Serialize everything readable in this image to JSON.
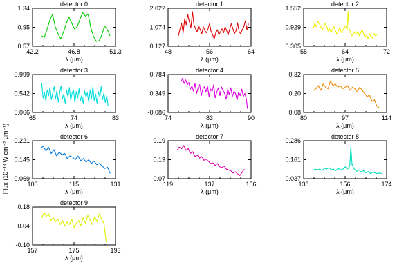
{
  "figure": {
    "ylabel": "Flux (10⁻¹³ W cm⁻² μm⁻¹)"
  },
  "chart_data": [
    {
      "type": "line",
      "title": "detector 0",
      "xlabel": "λ (μm)",
      "color": "#00cc00",
      "xlim": [
        42.2,
        51.3
      ],
      "ylim": [
        0.57,
        1.34
      ],
      "xticks": [
        "42.2",
        "46.8",
        "51.3"
      ],
      "yticks": [
        "1.34",
        "0.95",
        "0.57"
      ],
      "series": [
        {
          "x": [
            43.2,
            43.5,
            43.8,
            44.1,
            44.4,
            44.7,
            45.0,
            45.3,
            45.6,
            45.9,
            46.2,
            46.5,
            46.8,
            47.1,
            47.4,
            47.7,
            48.0,
            48.3,
            48.6,
            48.9,
            49.2,
            49.5,
            49.8,
            50.1,
            50.4,
            50.7
          ],
          "values": [
            0.78,
            0.75,
            0.92,
            1.1,
            1.22,
            0.96,
            0.82,
            0.72,
            0.86,
            1.03,
            1.16,
            1.04,
            0.92,
            0.96,
            1.12,
            1.25,
            1.18,
            1.22,
            0.94,
            0.76,
            0.67,
            0.68,
            0.8,
            0.98,
            0.91,
            0.78
          ]
        }
      ]
    },
    {
      "type": "line",
      "title": "detector 1",
      "xlabel": "λ (μm)",
      "color": "#dd0000",
      "xlim": [
        48,
        64
      ],
      "ylim": [
        0.127,
        2.022
      ],
      "xticks": [
        "48",
        "56",
        "64"
      ],
      "yticks": [
        "2.022",
        "1.074",
        "0.127"
      ],
      "series": [
        {
          "x": [
            50.0,
            50.3,
            50.6,
            50.9,
            51.2,
            51.5,
            51.8,
            52.1,
            52.4,
            52.7,
            53.0,
            53.3,
            53.6,
            53.9,
            54.2,
            54.5,
            54.8,
            55.1,
            55.4,
            55.7,
            56.0,
            56.3,
            56.6,
            56.9,
            57.2,
            57.5,
            57.8,
            58.1,
            58.4,
            58.7,
            59.0,
            59.3,
            59.6,
            59.9,
            60.2,
            60.5,
            60.8,
            61.1,
            61.4,
            61.7,
            62.0,
            62.3,
            62.6,
            62.9,
            63.2,
            63.5
          ],
          "values": [
            0.65,
            1.0,
            1.25,
            0.8,
            1.5,
            1.2,
            1.7,
            1.35,
            1.05,
            1.85,
            1.2,
            1.0,
            0.85,
            1.15,
            0.95,
            0.75,
            1.1,
            0.9,
            0.8,
            1.0,
            1.25,
            0.85,
            0.7,
            0.5,
            0.8,
            0.95,
            0.7,
            0.85,
            1.0,
            0.8,
            1.1,
            0.9,
            0.7,
            1.0,
            1.25,
            1.0,
            0.75,
            0.9,
            1.3,
            0.85,
            0.75,
            0.95,
            1.1,
            1.4,
            0.95,
            1.25
          ]
        }
      ]
    },
    {
      "type": "line",
      "title": "detector 2",
      "xlabel": "λ (μm)",
      "color": "#eeee00",
      "xlim": [
        55,
        72
      ],
      "ylim": [
        0.305,
        1.552
      ],
      "xticks": [
        "55",
        "64",
        "72"
      ],
      "yticks": [
        "1.552",
        "0.929",
        "0.305"
      ],
      "series": [
        {
          "x": [
            57.0,
            57.3,
            57.6,
            57.9,
            58.2,
            58.5,
            58.8,
            59.1,
            59.4,
            59.7,
            60.0,
            60.3,
            60.6,
            60.9,
            61.2,
            61.5,
            61.8,
            62.1,
            62.4,
            62.7,
            63.0,
            63.3,
            63.6,
            63.9,
            64.1,
            64.3,
            64.6,
            64.9,
            65.2,
            65.5,
            65.8,
            66.1,
            66.4,
            66.7,
            67.0,
            67.3,
            67.6,
            67.9,
            68.2,
            68.5,
            68.8,
            69.1,
            69.4,
            69.7,
            70.0
          ],
          "values": [
            0.9,
            1.05,
            0.95,
            1.12,
            1.05,
            0.95,
            0.85,
            0.92,
            1.05,
            0.98,
            0.8,
            0.9,
            0.75,
            0.85,
            0.95,
            0.82,
            0.7,
            0.8,
            0.92,
            0.75,
            0.85,
            0.88,
            0.98,
            0.85,
            1.45,
            0.9,
            0.75,
            0.65,
            0.7,
            0.78,
            0.7,
            0.8,
            0.65,
            0.75,
            0.85,
            0.7,
            0.6,
            0.68,
            0.55,
            0.72,
            0.62,
            0.58,
            0.72,
            0.65,
            0.68
          ]
        }
      ]
    },
    {
      "type": "line",
      "title": "detector 3",
      "xlabel": "λ (μm)",
      "color": "#00dddd",
      "xlim": [
        65,
        83
      ],
      "ylim": [
        0.066,
        0.999
      ],
      "xticks": [
        "65",
        "74",
        "83"
      ],
      "yticks": [
        "0.999",
        "0.542",
        "0.066"
      ],
      "series": [
        {
          "x": [
            67.0,
            67.3,
            67.6,
            67.9,
            68.2,
            68.5,
            68.8,
            69.1,
            69.4,
            69.7,
            70.0,
            70.3,
            70.6,
            70.9,
            71.2,
            71.5,
            71.8,
            72.1,
            72.4,
            72.7,
            73.0,
            73.3,
            73.6,
            73.9,
            74.2,
            74.5,
            74.8,
            75.1,
            75.4,
            75.7,
            76.0,
            76.3,
            76.6,
            76.9,
            77.2,
            77.5,
            77.8,
            78.1,
            78.4,
            78.7,
            79.0,
            79.3,
            79.6,
            79.9,
            80.2,
            80.5,
            80.8,
            81.1,
            81.4
          ],
          "values": [
            0.78,
            0.42,
            0.55,
            0.35,
            0.62,
            0.48,
            0.68,
            0.38,
            0.55,
            0.7,
            0.4,
            0.6,
            0.32,
            0.55,
            0.72,
            0.4,
            0.52,
            0.28,
            0.62,
            0.45,
            0.68,
            0.36,
            0.55,
            0.62,
            0.3,
            0.58,
            0.42,
            0.65,
            0.35,
            0.5,
            0.28,
            0.6,
            0.45,
            0.55,
            0.32,
            0.62,
            0.4,
            0.7,
            0.35,
            0.52,
            0.28,
            0.58,
            0.45,
            0.7,
            0.38,
            0.55,
            0.3,
            0.48,
            0.22
          ]
        }
      ]
    },
    {
      "type": "line",
      "title": "detector 4",
      "xlabel": "λ (μm)",
      "color": "#dd00dd",
      "xlim": [
        74,
        90
      ],
      "ylim": [
        -0.086,
        0.784
      ],
      "xticks": [
        "74",
        "83",
        "90"
      ],
      "yticks": [
        "0.784",
        "0.349",
        "-0.086"
      ],
      "series": [
        {
          "x": [
            76.5,
            76.8,
            77.1,
            77.4,
            77.7,
            78.0,
            78.3,
            78.6,
            78.9,
            79.2,
            79.5,
            79.8,
            80.1,
            80.4,
            80.7,
            81.0,
            81.3,
            81.6,
            81.9,
            82.2,
            82.5,
            82.8,
            83.1,
            83.4,
            83.7,
            84.0,
            84.3,
            84.6,
            84.9,
            85.2,
            85.5,
            85.8,
            86.1,
            86.4,
            86.7,
            87.0,
            87.3,
            87.6,
            87.9,
            88.2,
            88.5,
            88.8,
            89.1,
            89.3
          ],
          "values": [
            0.62,
            0.7,
            0.58,
            0.66,
            0.55,
            0.6,
            0.45,
            0.52,
            0.4,
            0.58,
            0.35,
            0.48,
            0.55,
            0.3,
            0.45,
            0.5,
            0.38,
            0.52,
            0.28,
            0.45,
            0.4,
            0.55,
            0.25,
            0.38,
            0.48,
            0.3,
            0.5,
            0.42,
            0.35,
            0.22,
            0.45,
            0.32,
            0.48,
            0.28,
            0.4,
            0.35,
            0.2,
            0.38,
            0.3,
            0.45,
            0.28,
            0.35,
            0.22,
            0.0
          ]
        }
      ]
    },
    {
      "type": "line",
      "title": "detector 5",
      "xlabel": "λ (μm)",
      "color": "#ee8800",
      "xlim": [
        80,
        114
      ],
      "ylim": [
        0.08,
        0.32
      ],
      "xticks": [
        "80",
        "97",
        "114"
      ],
      "yticks": [
        "0.32",
        "0.20",
        "0.08"
      ],
      "series": [
        {
          "x": [
            84,
            85,
            86,
            87,
            88,
            89,
            90,
            91,
            92,
            93,
            94,
            95,
            96,
            97,
            98,
            99,
            100,
            101,
            102,
            103,
            104,
            105,
            106,
            107,
            108,
            109,
            110,
            111
          ],
          "values": [
            0.22,
            0.23,
            0.25,
            0.22,
            0.26,
            0.24,
            0.23,
            0.28,
            0.25,
            0.26,
            0.24,
            0.25,
            0.23,
            0.24,
            0.25,
            0.22,
            0.24,
            0.23,
            0.21,
            0.24,
            0.22,
            0.2,
            0.18,
            0.19,
            0.15,
            0.16,
            0.12,
            0.11
          ]
        }
      ]
    },
    {
      "type": "line",
      "title": "detector 6",
      "xlabel": "λ (μm)",
      "color": "#0077dd",
      "xlim": [
        100,
        131
      ],
      "ylim": [
        0.069,
        0.221
      ],
      "xticks": [
        "100",
        "115",
        "131"
      ],
      "yticks": [
        "0.221",
        "0.145",
        "0.069"
      ],
      "series": [
        {
          "x": [
            103,
            104,
            105,
            106,
            107,
            108,
            109,
            110,
            111,
            112,
            113,
            114,
            115,
            116,
            117,
            118,
            119,
            120,
            121,
            122,
            123,
            124,
            125,
            126,
            127,
            128,
            129
          ],
          "values": [
            0.19,
            0.2,
            0.18,
            0.195,
            0.17,
            0.185,
            0.16,
            0.175,
            0.165,
            0.17,
            0.15,
            0.16,
            0.155,
            0.145,
            0.16,
            0.14,
            0.15,
            0.135,
            0.145,
            0.13,
            0.14,
            0.125,
            0.13,
            0.12,
            0.11,
            0.115,
            0.09
          ]
        }
      ]
    },
    {
      "type": "line",
      "title": "detector 7",
      "xlabel": "λ (μm)",
      "color": "#dd00aa",
      "xlim": [
        119,
        156
      ],
      "ylim": [
        0.07,
        0.19
      ],
      "xticks": [
        "119",
        "137",
        "156"
      ],
      "yticks": [
        "0.19",
        "0.13",
        "0.07"
      ],
      "series": [
        {
          "x": [
            123,
            124,
            125,
            126,
            127,
            128,
            129,
            130,
            131,
            132,
            133,
            134,
            135,
            136,
            137,
            138,
            139,
            140,
            141,
            142,
            143,
            144,
            145,
            146,
            147,
            148,
            149,
            150,
            151,
            152,
            153
          ],
          "values": [
            0.16,
            0.17,
            0.165,
            0.175,
            0.16,
            0.165,
            0.15,
            0.155,
            0.14,
            0.145,
            0.135,
            0.14,
            0.128,
            0.132,
            0.125,
            0.118,
            0.12,
            0.112,
            0.118,
            0.108,
            0.105,
            0.11,
            0.1,
            0.098,
            0.095,
            0.088,
            0.092,
            0.085,
            0.08,
            0.09,
            0.1
          ]
        }
      ]
    },
    {
      "type": "line",
      "title": "detector 8",
      "xlabel": "λ (μm)",
      "color": "#00ddbb",
      "xlim": [
        138,
        174
      ],
      "ylim": [
        0.037,
        0.286
      ],
      "xticks": [
        "138",
        "156",
        "174"
      ],
      "yticks": [
        "0.286",
        "0.161",
        "0.037"
      ],
      "series": [
        {
          "x": [
            142,
            143,
            144,
            145,
            146,
            147,
            148,
            149,
            150,
            151,
            152,
            153,
            154,
            155,
            156,
            157,
            158,
            158.5,
            159,
            160,
            161,
            162,
            163,
            164,
            165,
            166,
            167,
            168,
            169,
            170,
            171,
            172
          ],
          "values": [
            0.09,
            0.1,
            0.095,
            0.1,
            0.09,
            0.105,
            0.1,
            0.11,
            0.095,
            0.1,
            0.09,
            0.105,
            0.095,
            0.1,
            0.115,
            0.1,
            0.12,
            0.25,
            0.13,
            0.1,
            0.085,
            0.095,
            0.08,
            0.09,
            0.075,
            0.085,
            0.07,
            0.08,
            0.075,
            0.07,
            0.075,
            0.07
          ]
        }
      ]
    },
    {
      "type": "line",
      "title": "detector 9",
      "xlabel": "λ (μm)",
      "color": "#ddee00",
      "xlim": [
        157,
        193
      ],
      "ylim": [
        -0.1,
        0.18
      ],
      "xticks": [
        "157",
        "175",
        "193"
      ],
      "yticks": [
        "0.18",
        "0.04",
        "-0.10"
      ],
      "series": [
        {
          "x": [
            161,
            162,
            163,
            164,
            165,
            166,
            167,
            168,
            169,
            170,
            171,
            172,
            173,
            174,
            175,
            176,
            177,
            178,
            179,
            180,
            181,
            182,
            183,
            184,
            185,
            186,
            187,
            188,
            189
          ],
          "values": [
            0.1,
            0.14,
            0.11,
            0.13,
            0.08,
            0.1,
            0.07,
            0.09,
            0.05,
            0.08,
            0.04,
            0.07,
            0.05,
            0.09,
            0.03,
            0.06,
            0.08,
            0.04,
            0.1,
            0.06,
            0.12,
            0.08,
            0.05,
            0.11,
            0.07,
            0.13,
            0.09,
            0.06,
            -0.08
          ]
        }
      ]
    }
  ]
}
